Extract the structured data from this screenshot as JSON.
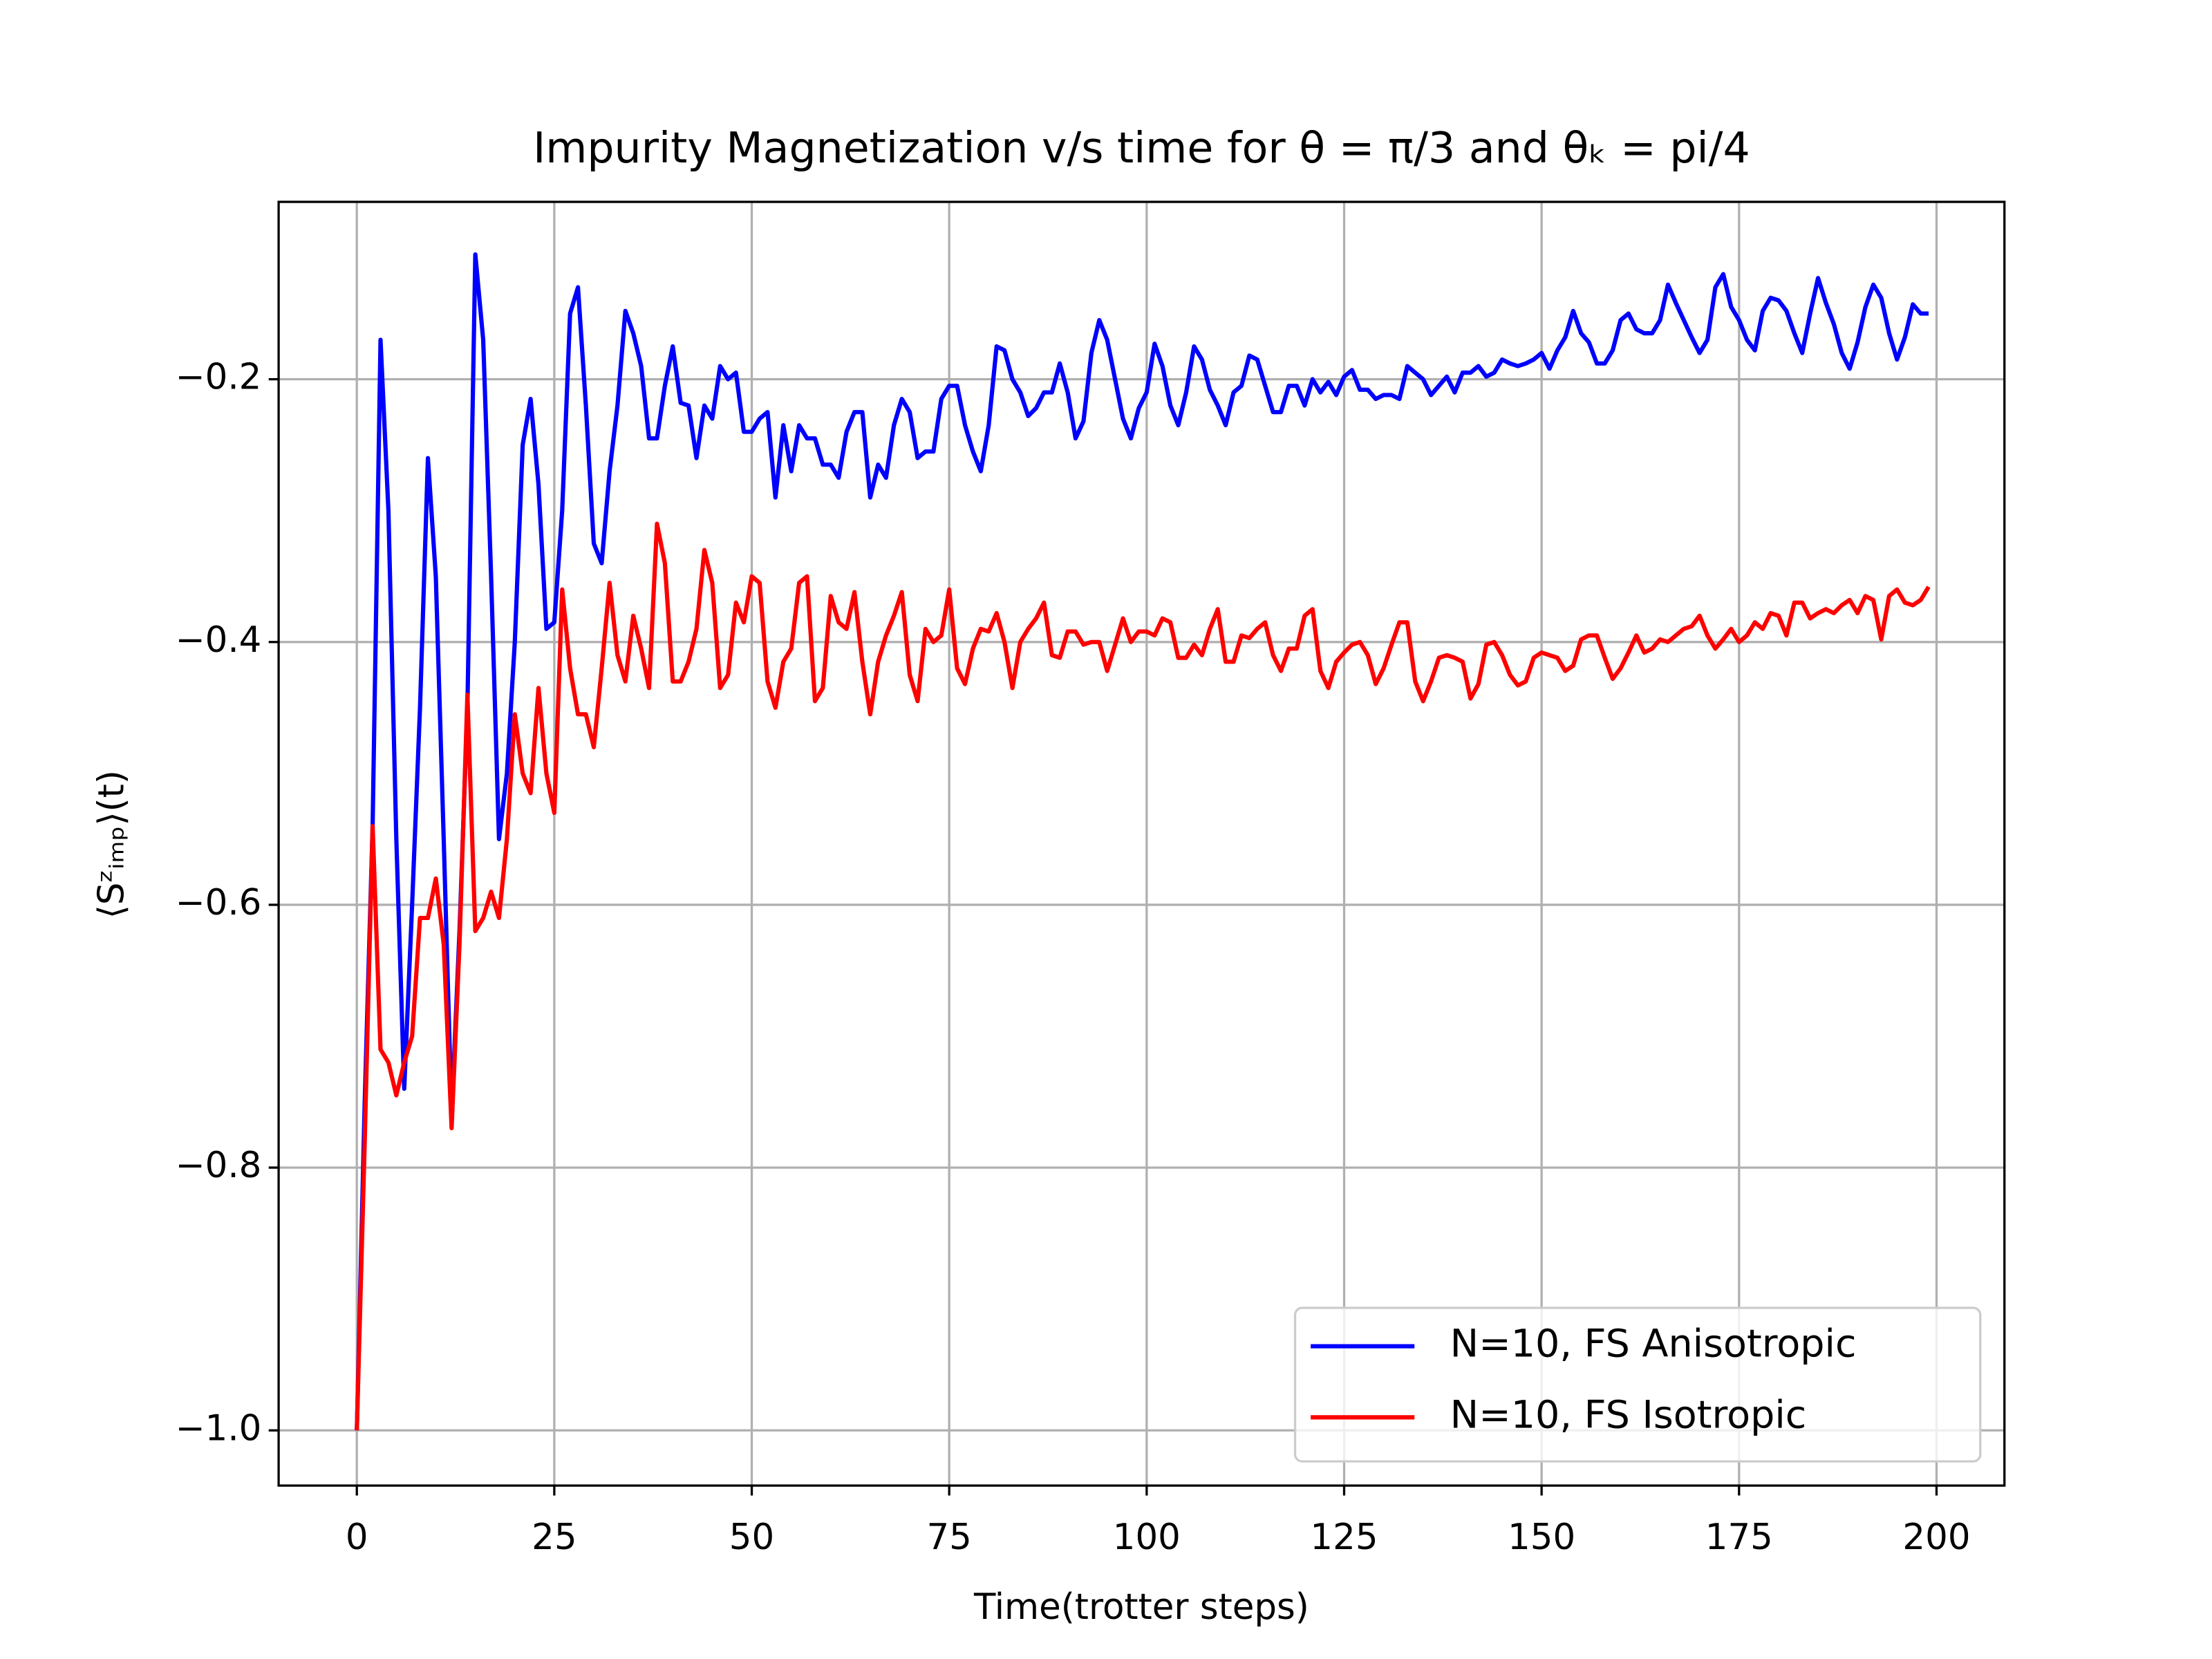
{
  "chart_data": {
    "type": "line",
    "title": "Impurity Magnetization v/s time for θ = π/3 and θₖ = pi/4",
    "x_label": "Time(trotter steps)",
    "y_label": "⟨Sᶻᵢₘₚ⟩(t)",
    "x": [
      0,
      1,
      2,
      3,
      4,
      5,
      6,
      7,
      8,
      9,
      10,
      11,
      12,
      13,
      14,
      15,
      16,
      17,
      18,
      19,
      20,
      21,
      22,
      23,
      24,
      25,
      26,
      27,
      28,
      29,
      30,
      31,
      32,
      33,
      34,
      35,
      36,
      37,
      38,
      39,
      40,
      41,
      42,
      43,
      44,
      45,
      46,
      47,
      48,
      49,
      50,
      51,
      52,
      53,
      54,
      55,
      56,
      57,
      58,
      59,
      60,
      61,
      62,
      63,
      64,
      65,
      66,
      67,
      68,
      69,
      70,
      71,
      72,
      73,
      74,
      75,
      76,
      77,
      78,
      79,
      80,
      81,
      82,
      83,
      84,
      85,
      86,
      87,
      88,
      89,
      90,
      91,
      92,
      93,
      94,
      95,
      96,
      97,
      98,
      99,
      100,
      101,
      102,
      103,
      104,
      105,
      106,
      107,
      108,
      109,
      110,
      111,
      112,
      113,
      114,
      115,
      116,
      117,
      118,
      119,
      120,
      121,
      122,
      123,
      124,
      125,
      126,
      127,
      128,
      129,
      130,
      131,
      132,
      133,
      134,
      135,
      136,
      137,
      138,
      139,
      140,
      141,
      142,
      143,
      144,
      145,
      146,
      147,
      148,
      149,
      150,
      151,
      152,
      153,
      154,
      155,
      156,
      157,
      158,
      159,
      160,
      161,
      162,
      163,
      164,
      165,
      166,
      167,
      168,
      169,
      170,
      171,
      172,
      173,
      174,
      175,
      176,
      177,
      178,
      179,
      180,
      181,
      182,
      183,
      184,
      185,
      186,
      187,
      188,
      189,
      190,
      191,
      192,
      193,
      194,
      195,
      196,
      197,
      198,
      199
    ],
    "series": [
      {
        "name": "N=10, FS Anisotropic",
        "color": "#0000ff",
        "values": [
          -1.0,
          -0.75,
          -0.54,
          -0.17,
          -0.3,
          -0.55,
          -0.74,
          -0.6,
          -0.45,
          -0.26,
          -0.35,
          -0.55,
          -0.76,
          -0.62,
          -0.45,
          -0.105,
          -0.17,
          -0.35,
          -0.55,
          -0.5,
          -0.4,
          -0.25,
          -0.215,
          -0.28,
          -0.39,
          -0.385,
          -0.3,
          -0.15,
          -0.13,
          -0.22,
          -0.325,
          -0.34,
          -0.27,
          -0.22,
          -0.148,
          -0.165,
          -0.19,
          -0.245,
          -0.245,
          -0.205,
          -0.175,
          -0.218,
          -0.22,
          -0.26,
          -0.22,
          -0.23,
          -0.19,
          -0.2,
          -0.195,
          -0.24,
          -0.24,
          -0.23,
          -0.225,
          -0.29,
          -0.235,
          -0.27,
          -0.235,
          -0.245,
          -0.245,
          -0.265,
          -0.265,
          -0.275,
          -0.24,
          -0.225,
          -0.225,
          -0.29,
          -0.265,
          -0.275,
          -0.235,
          -0.215,
          -0.225,
          -0.26,
          -0.255,
          -0.255,
          -0.215,
          -0.205,
          -0.205,
          -0.235,
          -0.255,
          -0.27,
          -0.235,
          -0.175,
          -0.178,
          -0.2,
          -0.21,
          -0.228,
          -0.222,
          -0.21,
          -0.21,
          -0.188,
          -0.21,
          -0.245,
          -0.232,
          -0.18,
          -0.155,
          -0.17,
          -0.2,
          -0.23,
          -0.245,
          -0.222,
          -0.21,
          -0.173,
          -0.19,
          -0.22,
          -0.235,
          -0.21,
          -0.175,
          -0.185,
          -0.208,
          -0.22,
          -0.235,
          -0.21,
          -0.205,
          -0.182,
          -0.185,
          -0.205,
          -0.225,
          -0.225,
          -0.205,
          -0.205,
          -0.22,
          -0.2,
          -0.21,
          -0.202,
          -0.212,
          -0.198,
          -0.193,
          -0.208,
          -0.208,
          -0.215,
          -0.212,
          -0.212,
          -0.215,
          -0.19,
          -0.195,
          -0.2,
          -0.212,
          -0.205,
          -0.198,
          -0.21,
          -0.195,
          -0.195,
          -0.19,
          -0.198,
          -0.195,
          -0.185,
          -0.188,
          -0.19,
          -0.188,
          -0.185,
          -0.18,
          -0.192,
          -0.178,
          -0.168,
          -0.148,
          -0.165,
          -0.172,
          -0.188,
          -0.188,
          -0.178,
          -0.155,
          -0.15,
          -0.162,
          -0.165,
          -0.165,
          -0.155,
          -0.128,
          -0.142,
          -0.155,
          -0.168,
          -0.18,
          -0.17,
          -0.13,
          -0.12,
          -0.145,
          -0.155,
          -0.17,
          -0.178,
          -0.148,
          -0.138,
          -0.14,
          -0.148,
          -0.165,
          -0.18,
          -0.15,
          -0.123,
          -0.142,
          -0.158,
          -0.18,
          -0.192,
          -0.172,
          -0.145,
          -0.128,
          -0.138,
          -0.165,
          -0.185,
          -0.168,
          -0.143,
          -0.15,
          -0.15
        ]
      },
      {
        "name": "N=10, FS Isotropic",
        "color": "#ff0000",
        "values": [
          -1.0,
          -0.78,
          -0.54,
          -0.71,
          -0.72,
          -0.745,
          -0.72,
          -0.7,
          -0.61,
          -0.61,
          -0.58,
          -0.63,
          -0.77,
          -0.63,
          -0.44,
          -0.62,
          -0.61,
          -0.59,
          -0.61,
          -0.55,
          -0.455,
          -0.5,
          -0.515,
          -0.435,
          -0.5,
          -0.53,
          -0.36,
          -0.42,
          -0.455,
          -0.455,
          -0.48,
          -0.42,
          -0.355,
          -0.41,
          -0.43,
          -0.38,
          -0.405,
          -0.435,
          -0.31,
          -0.34,
          -0.43,
          -0.43,
          -0.415,
          -0.39,
          -0.33,
          -0.355,
          -0.435,
          -0.425,
          -0.37,
          -0.385,
          -0.35,
          -0.355,
          -0.43,
          -0.45,
          -0.415,
          -0.405,
          -0.355,
          -0.35,
          -0.445,
          -0.435,
          -0.365,
          -0.385,
          -0.39,
          -0.362,
          -0.415,
          -0.455,
          -0.415,
          -0.395,
          -0.38,
          -0.362,
          -0.425,
          -0.445,
          -0.39,
          -0.4,
          -0.395,
          -0.36,
          -0.42,
          -0.432,
          -0.405,
          -0.39,
          -0.392,
          -0.378,
          -0.4,
          -0.435,
          -0.4,
          -0.39,
          -0.382,
          -0.37,
          -0.41,
          -0.412,
          -0.392,
          -0.392,
          -0.402,
          -0.4,
          -0.4,
          -0.422,
          -0.402,
          -0.382,
          -0.4,
          -0.392,
          -0.392,
          -0.395,
          -0.382,
          -0.385,
          -0.412,
          -0.412,
          -0.402,
          -0.41,
          -0.39,
          -0.375,
          -0.415,
          -0.415,
          -0.395,
          -0.397,
          -0.39,
          -0.385,
          -0.41,
          -0.422,
          -0.405,
          -0.405,
          -0.38,
          -0.375,
          -0.422,
          -0.435,
          -0.415,
          -0.408,
          -0.402,
          -0.4,
          -0.41,
          -0.432,
          -0.42,
          -0.402,
          -0.385,
          -0.385,
          -0.43,
          -0.445,
          -0.43,
          -0.412,
          -0.41,
          -0.412,
          -0.415,
          -0.443,
          -0.432,
          -0.402,
          -0.4,
          -0.41,
          -0.425,
          -0.433,
          -0.43,
          -0.412,
          -0.408,
          -0.41,
          -0.412,
          -0.422,
          -0.418,
          -0.398,
          -0.395,
          -0.395,
          -0.412,
          -0.428,
          -0.42,
          -0.408,
          -0.395,
          -0.408,
          -0.405,
          -0.398,
          -0.4,
          -0.395,
          -0.39,
          -0.388,
          -0.38,
          -0.395,
          -0.405,
          -0.398,
          -0.39,
          -0.4,
          -0.395,
          -0.385,
          -0.39,
          -0.378,
          -0.38,
          -0.395,
          -0.37,
          -0.37,
          -0.382,
          -0.378,
          -0.375,
          -0.378,
          -0.372,
          -0.368,
          -0.378,
          -0.365,
          -0.368,
          -0.398,
          -0.365,
          -0.36,
          -0.37,
          -0.372,
          -0.368,
          -0.358
        ]
      }
    ],
    "xlim": [
      -9.9,
      208.6
    ],
    "ylim": [
      -1.042,
      -0.065
    ],
    "xticks": [
      0,
      25,
      50,
      75,
      100,
      125,
      150,
      175,
      200
    ],
    "yticks": [
      {
        "value": -1.0,
        "label": "−1.0"
      },
      {
        "value": -0.8,
        "label": "−0.8"
      },
      {
        "value": -0.6,
        "label": "−0.6"
      },
      {
        "value": -0.4,
        "label": "−0.4"
      },
      {
        "value": -0.2,
        "label": "−0.2"
      }
    ],
    "grid": true,
    "legend": "lower right"
  }
}
